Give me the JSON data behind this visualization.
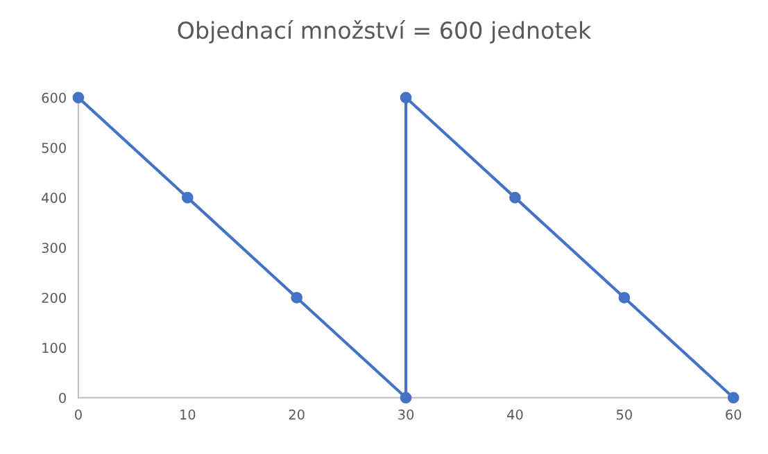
{
  "chart_data": {
    "type": "line",
    "title": "Objednací množství = 600 jednotek",
    "x": [
      0,
      10,
      20,
      30,
      30,
      40,
      50,
      60
    ],
    "series": [
      {
        "color": "#4472c4",
        "values": [
          600,
          400,
          200,
          0,
          600,
          400,
          200,
          0
        ]
      }
    ],
    "xlim": [
      0,
      60
    ],
    "xticks": [
      0,
      10,
      20,
      30,
      40,
      50,
      60
    ],
    "ylim": [
      0,
      600
    ],
    "yticks": [
      0,
      100,
      200,
      300,
      400,
      500,
      600
    ],
    "grid": false,
    "legend": false,
    "marker": "circle",
    "line_style": "solid"
  }
}
